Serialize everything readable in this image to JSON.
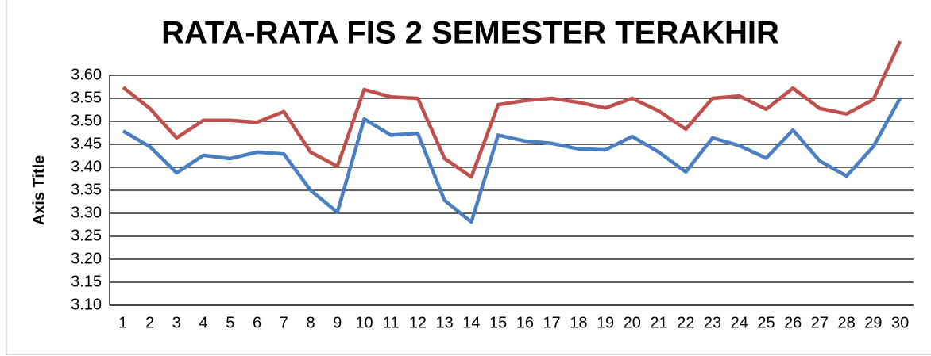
{
  "chart_data": {
    "type": "line",
    "title": "RATA-RATA FIS 2 SEMESTER TERAKHIR",
    "y_label": "Axis Title",
    "categories": [
      "1",
      "2",
      "3",
      "4",
      "5",
      "6",
      "7",
      "8",
      "9",
      "10",
      "11",
      "12",
      "13",
      "14",
      "15",
      "16",
      "17",
      "18",
      "19",
      "20",
      "21",
      "22",
      "23",
      "24",
      "25",
      "26",
      "27",
      "28",
      "29",
      "30"
    ],
    "series": [
      {
        "color": "#4a7fc1",
        "values": [
          3.479,
          3.445,
          3.388,
          3.426,
          3.419,
          3.433,
          3.429,
          3.35,
          3.302,
          3.505,
          3.47,
          3.474,
          3.328,
          3.281,
          3.47,
          3.457,
          3.452,
          3.44,
          3.438,
          3.467,
          3.433,
          3.39,
          3.464,
          3.447,
          3.42,
          3.481,
          3.414,
          3.381,
          3.445,
          3.55
        ]
      },
      {
        "color": "#c0504d",
        "values": [
          3.574,
          3.528,
          3.464,
          3.502,
          3.502,
          3.498,
          3.521,
          3.433,
          3.402,
          3.569,
          3.553,
          3.55,
          3.419,
          3.379,
          3.536,
          3.545,
          3.55,
          3.541,
          3.529,
          3.55,
          3.522,
          3.483,
          3.55,
          3.555,
          3.526,
          3.572,
          3.528,
          3.516,
          3.547,
          3.674
        ]
      }
    ],
    "ylim": [
      3.1,
      3.6
    ],
    "yticks": [
      {
        "value": 3.1,
        "label": "3.10"
      },
      {
        "value": 3.15,
        "label": "3.15"
      },
      {
        "value": 3.2,
        "label": "3.20"
      },
      {
        "value": 3.25,
        "label": "3.25"
      },
      {
        "value": 3.3,
        "label": "3.30"
      },
      {
        "value": 3.35,
        "label": "3.35"
      },
      {
        "value": 3.4,
        "label": "3.40"
      },
      {
        "value": 3.45,
        "label": "3.45"
      },
      {
        "value": 3.5,
        "label": "3.50"
      },
      {
        "value": 3.55,
        "label": "3.55"
      },
      {
        "value": 3.6,
        "label": "3.60"
      }
    ],
    "grid": true
  }
}
